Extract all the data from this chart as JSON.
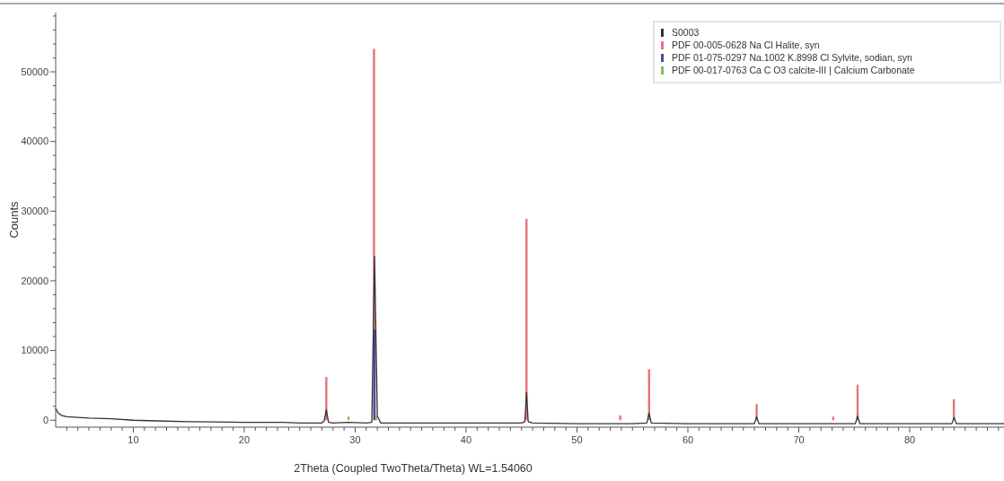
{
  "chart_data": {
    "type": "line",
    "xlabel": "2Theta (Coupled TwoTheta/Theta) WL=1.54060",
    "ylabel": "Counts",
    "xlim": [
      3,
      88.5
    ],
    "ylim": [
      -1000,
      58500
    ],
    "xticks": [
      {
        "value": 4,
        "label": null
      },
      {
        "value": 5,
        "label": null
      },
      {
        "value": 6,
        "label": null
      },
      {
        "value": 7,
        "label": null
      },
      {
        "value": 8,
        "label": null
      },
      {
        "value": 9,
        "label": null
      },
      10,
      {
        "value": 11,
        "label": null
      },
      {
        "value": 12,
        "label": null
      },
      {
        "value": 13,
        "label": null
      },
      {
        "value": 14,
        "label": null
      },
      {
        "value": 15,
        "label": null
      },
      {
        "value": 16,
        "label": null
      },
      {
        "value": 17,
        "label": null
      },
      {
        "value": 18,
        "label": null
      },
      {
        "value": 19,
        "label": null
      },
      20,
      {
        "value": 21,
        "label": null
      },
      {
        "value": 22,
        "label": null
      },
      {
        "value": 23,
        "label": null
      },
      {
        "value": 24,
        "label": null
      },
      {
        "value": 25,
        "label": null
      },
      {
        "value": 26,
        "label": null
      },
      {
        "value": 27,
        "label": null
      },
      {
        "value": 28,
        "label": null
      },
      {
        "value": 29,
        "label": null
      },
      30,
      {
        "value": 31,
        "label": null
      },
      {
        "value": 32,
        "label": null
      },
      {
        "value": 33,
        "label": null
      },
      {
        "value": 34,
        "label": null
      },
      {
        "value": 35,
        "label": null
      },
      {
        "value": 36,
        "label": null
      },
      {
        "value": 37,
        "label": null
      },
      {
        "value": 38,
        "label": null
      },
      {
        "value": 39,
        "label": null
      },
      40,
      {
        "value": 41,
        "label": null
      },
      {
        "value": 42,
        "label": null
      },
      {
        "value": 43,
        "label": null
      },
      {
        "value": 44,
        "label": null
      },
      {
        "value": 45,
        "label": null
      },
      {
        "value": 46,
        "label": null
      },
      {
        "value": 47,
        "label": null
      },
      {
        "value": 48,
        "label": null
      },
      {
        "value": 49,
        "label": null
      },
      50,
      {
        "value": 51,
        "label": null
      },
      {
        "value": 52,
        "label": null
      },
      {
        "value": 53,
        "label": null
      },
      {
        "value": 54,
        "label": null
      },
      {
        "value": 55,
        "label": null
      },
      {
        "value": 56,
        "label": null
      },
      {
        "value": 57,
        "label": null
      },
      {
        "value": 58,
        "label": null
      },
      {
        "value": 59,
        "label": null
      },
      60,
      {
        "value": 61,
        "label": null
      },
      {
        "value": 62,
        "label": null
      },
      {
        "value": 63,
        "label": null
      },
      {
        "value": 64,
        "label": null
      },
      {
        "value": 65,
        "label": null
      },
      {
        "value": 66,
        "label": null
      },
      {
        "value": 67,
        "label": null
      },
      {
        "value": 68,
        "label": null
      },
      {
        "value": 69,
        "label": null
      },
      70,
      {
        "value": 71,
        "label": null
      },
      {
        "value": 72,
        "label": null
      },
      {
        "value": 73,
        "label": null
      },
      {
        "value": 74,
        "label": null
      },
      {
        "value": 75,
        "label": null
      },
      {
        "value": 76,
        "label": null
      },
      {
        "value": 77,
        "label": null
      },
      {
        "value": 78,
        "label": null
      },
      {
        "value": 79,
        "label": null
      },
      80,
      {
        "value": 81,
        "label": null
      },
      {
        "value": 82,
        "label": null
      },
      {
        "value": 83,
        "label": null
      },
      {
        "value": 84,
        "label": null
      },
      {
        "value": 85,
        "label": null
      },
      {
        "value": 86,
        "label": null
      },
      {
        "value": 87,
        "label": null
      },
      {
        "value": 88,
        "label": null
      }
    ],
    "yticks": [
      0,
      {
        "value": 2000,
        "label": null
      },
      {
        "value": 4000,
        "label": null
      },
      {
        "value": 6000,
        "label": null
      },
      {
        "value": 8000,
        "label": null
      },
      10000,
      {
        "value": 12000,
        "label": null
      },
      {
        "value": 14000,
        "label": null
      },
      {
        "value": 16000,
        "label": null
      },
      {
        "value": 18000,
        "label": null
      },
      20000,
      {
        "value": 22000,
        "label": null
      },
      {
        "value": 24000,
        "label": null
      },
      {
        "value": 26000,
        "label": null
      },
      {
        "value": 28000,
        "label": null
      },
      30000,
      {
        "value": 32000,
        "label": null
      },
      {
        "value": 34000,
        "label": null
      },
      {
        "value": 36000,
        "label": null
      },
      {
        "value": 38000,
        "label": null
      },
      40000,
      {
        "value": 42000,
        "label": null
      },
      {
        "value": 44000,
        "label": null
      },
      {
        "value": 46000,
        "label": null
      },
      {
        "value": 48000,
        "label": null
      },
      50000,
      {
        "value": 52000,
        "label": null
      },
      {
        "value": 54000,
        "label": null
      },
      {
        "value": 56000,
        "label": null
      },
      {
        "value": 58000,
        "label": null
      }
    ],
    "legend": "top right",
    "grid": false,
    "series": [
      {
        "name": "S0003",
        "color": "#333333",
        "x": [
          3,
          3.2,
          3.5,
          4,
          5,
          6,
          8,
          10,
          12,
          15,
          20,
          23.5,
          25,
          27,
          27.2,
          27.4,
          27.6,
          28,
          29.4,
          31,
          31.5,
          31.75,
          32,
          32.3,
          35,
          40,
          45,
          45.3,
          45.45,
          45.6,
          46,
          50,
          53.9,
          55,
          56.3,
          56.5,
          56.7,
          60,
          66,
          66.2,
          66.4,
          70,
          75.1,
          75.3,
          75.5,
          80,
          83.8,
          84,
          84.2,
          88.5
        ],
        "values": [
          1700,
          1100,
          700,
          500,
          400,
          300,
          200,
          0,
          -100,
          -200,
          -300,
          -300,
          -400,
          -400,
          -100,
          1500,
          -300,
          -400,
          -300,
          -400,
          -300,
          23500,
          600,
          -400,
          -400,
          -400,
          -400,
          -200,
          4000,
          -200,
          -400,
          -500,
          -500,
          -500,
          -400,
          1000,
          -400,
          -500,
          -500,
          500,
          -500,
          -500,
          -500,
          600,
          -500,
          -500,
          -500,
          400,
          -500,
          -500
        ]
      },
      {
        "name": "PDF 00-005-0628 Na Cl Halite, syn",
        "type": "bar",
        "color": "#e8737a",
        "x": [
          27.4,
          31.7,
          45.45,
          53.9,
          56.5,
          66.2,
          73.1,
          75.3,
          83.98
        ],
        "values": [
          6200,
          53300,
          28900,
          700,
          7300,
          2300,
          500,
          5100,
          3000
        ]
      },
      {
        "name": "PDF 01-075-0297 Na.1002 K.8998 Cl Sylvite, sodian, syn",
        "type": "bar",
        "color": "#4a4a9a",
        "x": [
          31.75
        ],
        "values": [
          13000
        ]
      },
      {
        "name": "PDF 00-017-0763 Ca C O3 calcite-III | Calcium Carbonate",
        "type": "bar",
        "color": "#7ac25a",
        "x": [
          29.4,
          31.9
        ],
        "values": [
          500,
          600
        ]
      }
    ]
  }
}
